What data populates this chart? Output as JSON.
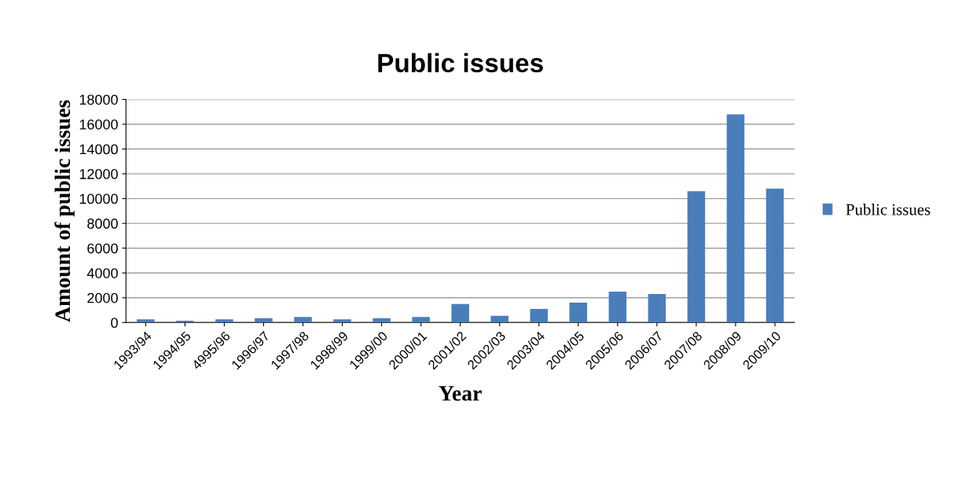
{
  "chart_data": {
    "type": "bar",
    "title": "Public issues",
    "xlabel": "Year",
    "ylabel": "Amount of public issues",
    "categories": [
      "1993/94",
      "1994/95",
      "4995/96",
      "1996/97",
      "1997/98",
      "1998/99",
      "1999/00",
      "2000/01",
      "2001/02",
      "2002/03",
      "2003/04",
      "2004/05",
      "2005/06",
      "2006/07",
      "2007/08",
      "2008/09",
      "2009/10"
    ],
    "series": [
      {
        "name": "Public issues",
        "color": "#4a7ebb",
        "values": [
          250,
          150,
          250,
          350,
          450,
          250,
          350,
          450,
          1500,
          550,
          1100,
          1600,
          2500,
          2300,
          10600,
          16800,
          10800
        ]
      }
    ],
    "ylim": [
      0,
      18000
    ],
    "yticks": [
      0,
      2000,
      4000,
      6000,
      8000,
      10000,
      12000,
      14000,
      16000,
      18000
    ],
    "grid": "y",
    "legend": "right"
  }
}
